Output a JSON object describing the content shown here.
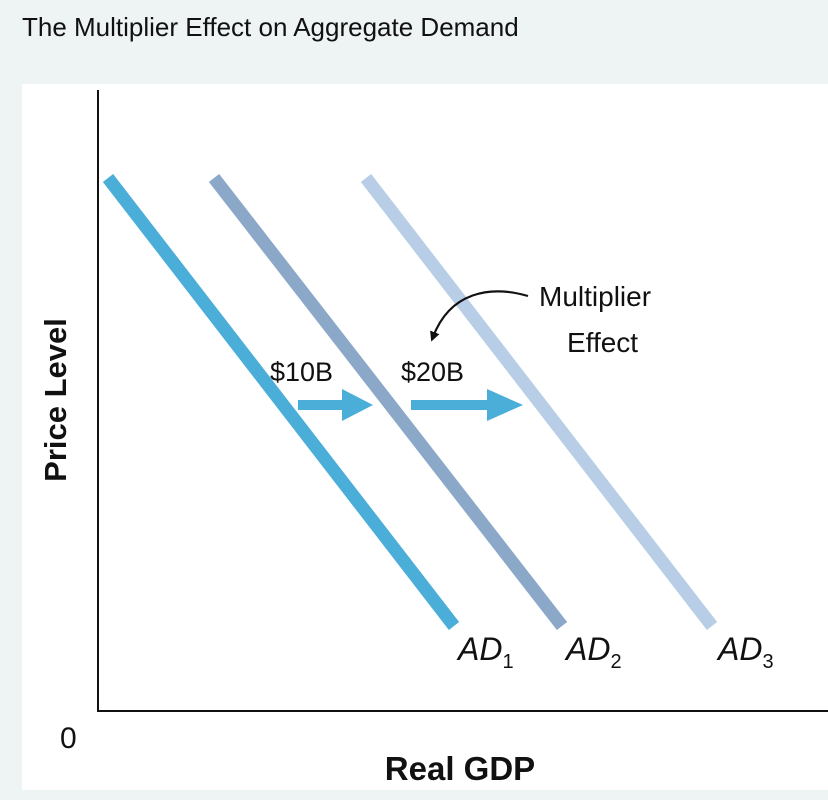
{
  "title": "The Multiplier Effect on Aggregate Demand",
  "axes": {
    "ylabel": "Price Level",
    "xlabel": "Real GDP",
    "origin": "0"
  },
  "curves": [
    {
      "base": "AD",
      "sub": "1",
      "color": "#4aaed8"
    },
    {
      "base": "AD",
      "sub": "2",
      "color": "#8ca8c8"
    },
    {
      "base": "AD",
      "sub": "3",
      "color": "#b8cee6"
    }
  ],
  "shifts": [
    {
      "label": "$10B",
      "color": "#4aaed8"
    },
    {
      "label": "$20B",
      "color": "#4aaed8"
    }
  ],
  "annotation": {
    "line1": "Multiplier",
    "line2": "Effect"
  }
}
